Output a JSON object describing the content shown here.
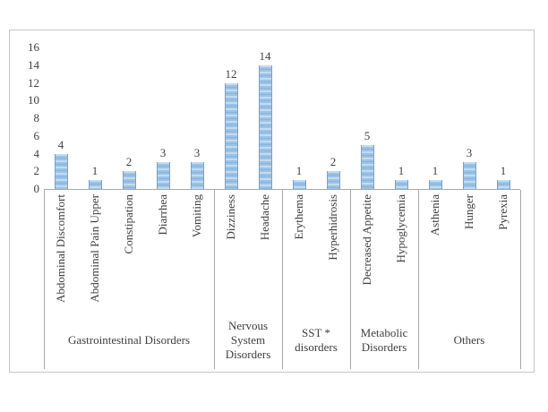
{
  "chart_data": {
    "type": "bar",
    "title": "",
    "xlabel": "",
    "ylabel": "",
    "ylim": [
      0,
      16
    ],
    "yticks": [
      0,
      2,
      4,
      6,
      8,
      10,
      12,
      14,
      16
    ],
    "grid": false,
    "legend": "none",
    "data_labels": true,
    "colors": {
      "bar_stripe_light": "#c3dbf0",
      "bar_stripe_mid": "#9cc3e6",
      "bar_stripe_dark": "#85b5e0",
      "bar_edge": "#6fa3d6",
      "axis_line": "#a8a8a8",
      "outer_border": "#c6c6c6",
      "text": "#3f3f3f",
      "background": "#ffffff"
    },
    "groups": [
      {
        "label": "Gastrointestinal Disorders",
        "items": [
          {
            "label": "Abdominal Discomfort",
            "value": 4
          },
          {
            "label": "Abdominal Pain Upper",
            "value": 1
          },
          {
            "label": "Constipation",
            "value": 2
          },
          {
            "label": "Diarrhea",
            "value": 3
          },
          {
            "label": "Vomiting",
            "value": 3
          }
        ]
      },
      {
        "label": "Nervous System Disorders",
        "items": [
          {
            "label": "Dizziness",
            "value": 12
          },
          {
            "label": "Headache",
            "value": 14
          }
        ]
      },
      {
        "label": "SST * disorders",
        "items": [
          {
            "label": "Erythema",
            "value": 1
          },
          {
            "label": "Hyperhidrosis",
            "value": 2
          }
        ]
      },
      {
        "label": "Metabolic Disorders",
        "items": [
          {
            "label": "Decreased Appetite",
            "value": 5
          },
          {
            "label": "Hypoglycemia",
            "value": 1
          }
        ]
      },
      {
        "label": "Others",
        "items": [
          {
            "label": "Asthenia",
            "value": 1
          },
          {
            "label": "Hunger",
            "value": 3
          },
          {
            "label": "Pyrexia",
            "value": 1
          }
        ]
      }
    ],
    "categories": [
      "Abdominal Discomfort",
      "Abdominal Pain Upper",
      "Constipation",
      "Diarrhea",
      "Vomiting",
      "Dizziness",
      "Headache",
      "Erythema",
      "Hyperhidrosis",
      "Decreased Appetite",
      "Hypoglycemia",
      "Asthenia",
      "Hunger",
      "Pyrexia"
    ],
    "values": [
      4,
      1,
      2,
      3,
      3,
      12,
      14,
      1,
      2,
      5,
      1,
      1,
      3,
      1
    ]
  }
}
